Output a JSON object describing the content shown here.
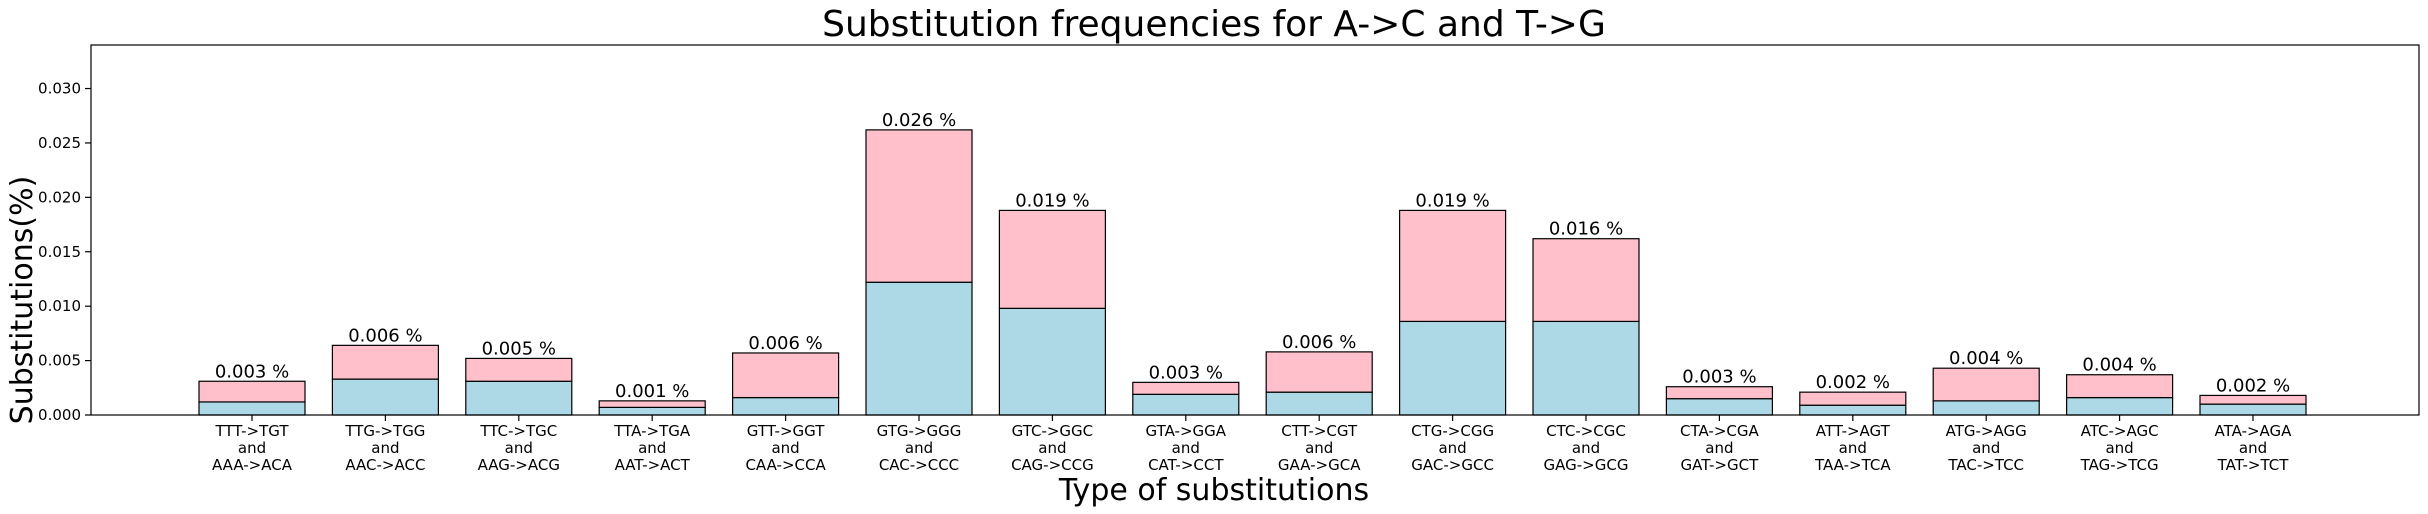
{
  "chart_data": {
    "type": "bar",
    "stacked": true,
    "title": "Substitution frequencies for A->C and T->G",
    "xlabel": "Type of substitutions",
    "ylabel": "Substitutions(%)",
    "ylim": [
      0,
      0.034
    ],
    "yticks": [
      "0.000",
      "0.005",
      "0.010",
      "0.015",
      "0.020",
      "0.025",
      "0.030"
    ],
    "grid": false,
    "categories": [
      [
        "TTT->TGT",
        "and",
        "AAA->ACA"
      ],
      [
        "TTG->TGG",
        "and",
        "AAC->ACC"
      ],
      [
        "TTC->TGC",
        "and",
        "AAG->ACG"
      ],
      [
        "TTA->TGA",
        "and",
        "AAT->ACT"
      ],
      [
        "GTT->GGT",
        "and",
        "CAA->CCA"
      ],
      [
        "GTG->GGG",
        "and",
        "CAC->CCC"
      ],
      [
        "GTC->GGC",
        "and",
        "CAG->CCG"
      ],
      [
        "GTA->GGA",
        "and",
        "CAT->CCT"
      ],
      [
        "CTT->CGT",
        "and",
        "GAA->GCA"
      ],
      [
        "CTG->CGG",
        "and",
        "GAC->GCC"
      ],
      [
        "CTC->CGC",
        "and",
        "GAG->GCG"
      ],
      [
        "CTA->CGA",
        "and",
        "GAT->GCT"
      ],
      [
        "ATT->AGT",
        "and",
        "TAA->TCA"
      ],
      [
        "ATG->AGG",
        "and",
        "TAC->TCC"
      ],
      [
        "ATC->AGC",
        "and",
        "TAG->TCG"
      ],
      [
        "ATA->AGA",
        "and",
        "TAT->TCT"
      ]
    ],
    "series": [
      {
        "color": "#add8e6",
        "values": [
          0.0012,
          0.0033,
          0.0031,
          0.0007,
          0.0016,
          0.0122,
          0.0098,
          0.0019,
          0.0021,
          0.0086,
          0.0086,
          0.0015,
          0.0009,
          0.0013,
          0.0016,
          0.001
        ]
      },
      {
        "color": "#ffc0cb",
        "values": [
          0.0019,
          0.0031,
          0.0021,
          0.0006,
          0.0041,
          0.014,
          0.009,
          0.0011,
          0.0037,
          0.0102,
          0.0076,
          0.0011,
          0.0012,
          0.003,
          0.0021,
          0.0008
        ]
      }
    ],
    "bar_labels": [
      "0.003 %",
      "0.006 %",
      "0.005 %",
      "0.001 %",
      "0.006 %",
      "0.026 %",
      "0.019 %",
      "0.003 %",
      "0.006 %",
      "0.019 %",
      "0.016 %",
      "0.003 %",
      "0.002 %",
      "0.004 %",
      "0.004 %",
      "0.002 %"
    ]
  }
}
